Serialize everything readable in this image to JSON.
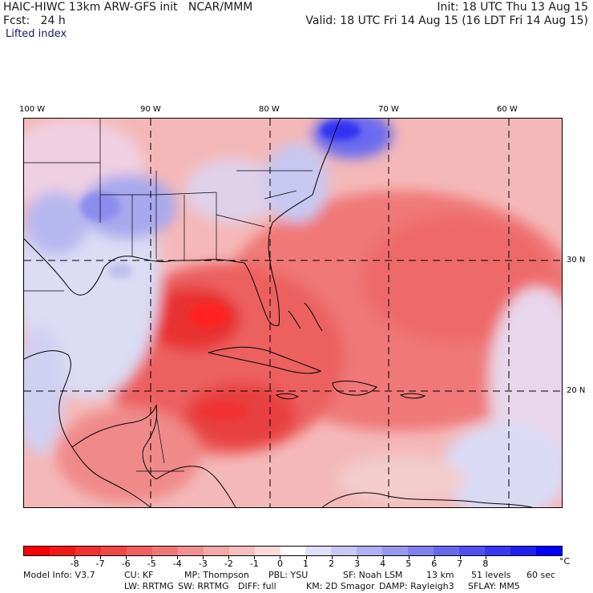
{
  "header": {
    "model_title": "HAIC-HIWC 13km ARW-GFS init   NCAR/MMM",
    "init_time": "Init: 18 UTC Thu 13 Aug 15",
    "forecast_hour": "Fcst:   24 h",
    "valid_time": "Valid: 18 UTC Fri 14 Aug 15 (16 LDT Fri 14 Aug 15)",
    "field_name": "Lifted index"
  },
  "map": {
    "longitude_labels": [
      "100 W",
      "90 W",
      "80 W",
      "70 W",
      "60 W"
    ],
    "latitude_labels": [
      "30 N",
      "20 N"
    ]
  },
  "colorbar": {
    "ticks": [
      "-8",
      "-7",
      "-6",
      "-5",
      "-4",
      "-3",
      "-2",
      "-1",
      "0",
      "1",
      "2",
      "3",
      "4",
      "5",
      "6",
      "7",
      "8"
    ],
    "unit": "°C",
    "colors": [
      "#ff0000",
      "#f21818",
      "#f23030",
      "#f04848",
      "#f06060",
      "#f27878",
      "#f29090",
      "#f5a8a8",
      "#f7c0c0",
      "#fadada",
      "#ffffff",
      "#e0e0fa",
      "#c8c8f5",
      "#b0b0f2",
      "#9898f0",
      "#8080ee",
      "#6868ee",
      "#5050f0",
      "#3838f2",
      "#2020f5",
      "#0000ff"
    ]
  },
  "model_info": {
    "line1": [
      "Model Info: V3.7",
      "CU: KF",
      "MP: Thompson",
      "PBL: YSU",
      "SF: Noah LSM",
      "13 km",
      "51 levels",
      "60 sec"
    ],
    "line2": [
      "LW: RRTMG",
      "SW: RRTMG",
      "DIFF: full",
      "KM: 2D Smagor",
      "DAMP: Rayleigh3",
      "SFLAY: MM5"
    ]
  }
}
